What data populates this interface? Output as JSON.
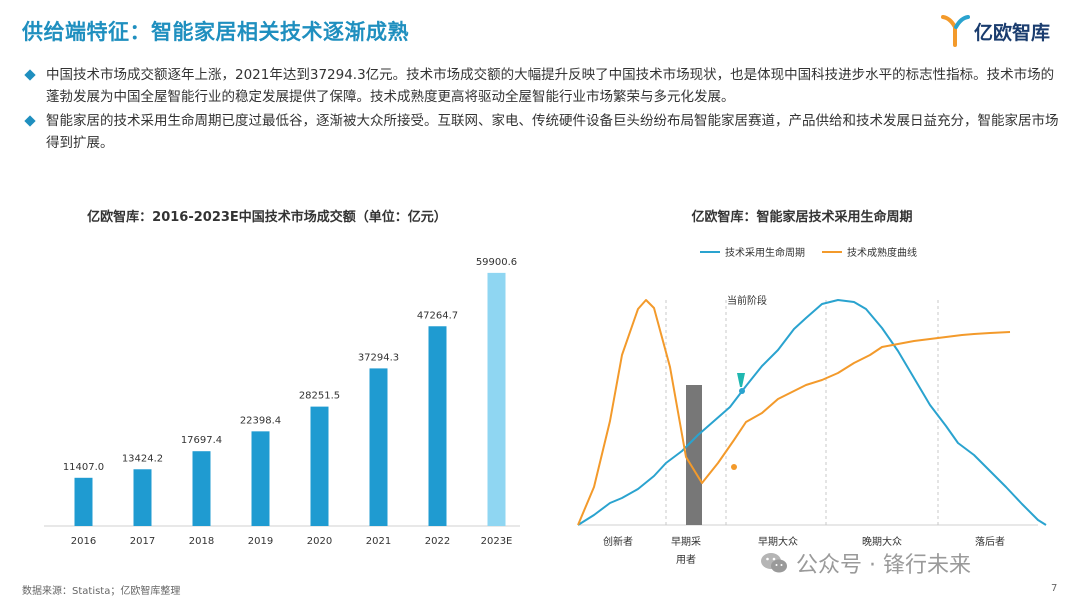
{
  "header": {
    "title": "供给端特征：智能家居相关技术逐渐成熟",
    "logo_text": "亿欧智库"
  },
  "bullets": [
    "中国技术市场成交额逐年上涨，2021年达到37294.3亿元。技术市场成交额的大幅提升反映了中国技术市场现状，也是体现中国科技进步水平的标志性指标。技术市场的蓬勃发展为中国全屋智能行业的稳定发展提供了保障。技术成熟度更高将驱动全屋智能行业市场繁荣与多元化发展。",
    "智能家居的技术采用生命周期已度过最低谷，逐渐被大众所接受。互联网、家电、传统硬件设备巨头纷纷布局智能家居赛道，产品供给和技术发展日益充分，智能家居市场得到扩展。"
  ],
  "chart_data": [
    {
      "type": "bar",
      "title": "亿欧智库：2016-2023E中国技术市场成交额（单位：亿元）",
      "categories": [
        "2016",
        "2017",
        "2018",
        "2019",
        "2020",
        "2021",
        "2022",
        "2023E"
      ],
      "values": [
        11407.0,
        13424.2,
        17697.4,
        22398.4,
        28251.5,
        37294.3,
        47264.7,
        59900.6
      ],
      "value_labels": [
        "11407.0",
        "13424.2",
        "17697.4",
        "22398.4",
        "28251.5",
        "37294.3",
        "47264.7",
        "59900.6"
      ],
      "colors": [
        "#1f9bd1",
        "#1f9bd1",
        "#1f9bd1",
        "#1f9bd1",
        "#1f9bd1",
        "#1f9bd1",
        "#1f9bd1",
        "#8fd6f2"
      ],
      "ylim": [
        0,
        62000
      ],
      "grid": false
    },
    {
      "type": "line",
      "title": "亿欧智库：智能家居技术采用生命周期",
      "legend_position": "top",
      "x_categories": [
        "创新者",
        "早期采用者",
        "早期大众",
        "晚期大众",
        "落后者"
      ],
      "annotation": "当前阶段",
      "series": [
        {
          "name": "技术采用生命周期",
          "color": "#2aa3cf",
          "points": [
            [
              0,
              0
            ],
            [
              4,
              10
            ],
            [
              8,
              22
            ],
            [
              11,
              27
            ],
            [
              15,
              36
            ],
            [
              19,
              49
            ],
            [
              22,
              62
            ],
            [
              26,
              74
            ],
            [
              30,
              90
            ],
            [
              34,
              104
            ],
            [
              38,
              118
            ],
            [
              42,
              139
            ],
            [
              46,
              159
            ],
            [
              50,
              175
            ],
            [
              54,
              196
            ],
            [
              57,
              207
            ],
            [
              61,
              221
            ],
            [
              65,
              225
            ],
            [
              69,
              223
            ],
            [
              72,
              216
            ],
            [
              76,
              197
            ],
            [
              80,
              174
            ],
            [
              84,
              147
            ],
            [
              88,
              120
            ],
            [
              92,
              99
            ],
            [
              95,
              82
            ],
            [
              99,
              70
            ],
            [
              103,
              54
            ],
            [
              107,
              38
            ],
            [
              111,
              21
            ],
            [
              115,
              5
            ],
            [
              117,
              0
            ]
          ]
        },
        {
          "name": "技术成熟度曲线",
          "color": "#f39a2b",
          "points": [
            [
              0,
              0
            ],
            [
              4,
              38
            ],
            [
              8,
              104
            ],
            [
              11,
              170
            ],
            [
              15,
              216
            ],
            [
              17,
              225
            ],
            [
              19,
              217
            ],
            [
              23,
              158
            ],
            [
              27,
              68
            ],
            [
              31,
              42
            ],
            [
              35,
              62
            ],
            [
              39,
              85
            ],
            [
              42,
              103
            ],
            [
              46,
              112
            ],
            [
              50,
              126
            ],
            [
              54,
              134
            ],
            [
              57,
              140
            ],
            [
              61,
              145
            ],
            [
              65,
              152
            ],
            [
              69,
              162
            ],
            [
              73,
              170
            ],
            [
              76,
              178
            ],
            [
              80,
              181
            ],
            [
              84,
              184
            ],
            [
              88,
              186
            ],
            [
              92,
              188
            ],
            [
              96,
              190
            ],
            [
              99,
              191
            ],
            [
              103,
              192
            ],
            [
              108,
              193
            ]
          ]
        }
      ],
      "highlight_bar": {
        "color": "#777777"
      },
      "markers": [
        {
          "series": "技术采用生命周期",
          "x": 41,
          "y": 134
        },
        {
          "series": "技术成熟度曲线",
          "x": 39,
          "y": 58
        }
      ],
      "grid": false
    }
  ],
  "footer": {
    "source": "数据来源：Statista；亿欧智库整理",
    "page": "7",
    "watermark": "公众号 · 锋行未来"
  }
}
